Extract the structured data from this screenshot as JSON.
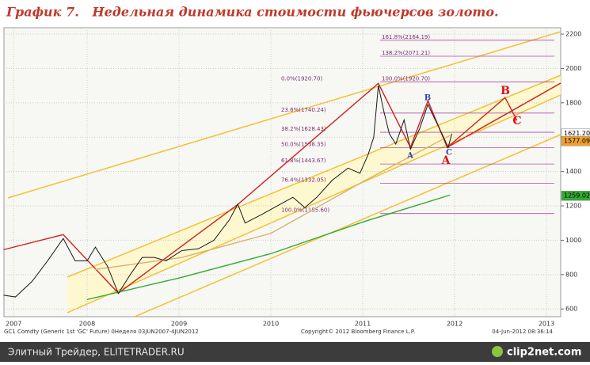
{
  "chart_data": {
    "type": "line",
    "title": "График 7.   Недельная динамика стоимости фьючерсов золото.",
    "x": [
      2007.09,
      2007.22,
      2007.4,
      2007.57,
      2007.74,
      2007.87,
      2008.0,
      2008.09,
      2008.22,
      2008.34,
      2008.47,
      2008.6,
      2008.73,
      2008.86,
      2009.03,
      2009.21,
      2009.38,
      2009.55,
      2009.64,
      2009.72,
      2009.9,
      2010.07,
      2010.24,
      2010.37,
      2010.5,
      2010.67,
      2010.84,
      2010.97,
      2011.06,
      2011.12,
      2011.17,
      2011.23,
      2011.29,
      2011.36,
      2011.45,
      2011.52,
      2011.62,
      2011.71,
      2011.79,
      2011.88,
      2011.93,
      2011.97
    ],
    "series": [
      {
        "color": "#1a1a1a",
        "values": [
          680,
          670,
          760,
          880,
          1010,
          880,
          880,
          960,
          850,
          690,
          800,
          900,
          900,
          880,
          940,
          950,
          1000,
          1120,
          1210,
          1100,
          1150,
          1200,
          1250,
          1190,
          1250,
          1350,
          1420,
          1390,
          1500,
          1600,
          1900,
          1750,
          1620,
          1560,
          1700,
          1530,
          1650,
          1790,
          1700,
          1600,
          1540,
          1620
        ]
      }
    ],
    "overlays": [
      {
        "color": "#cc2222",
        "x": [
          2007.09,
          2007.74,
          2008.34,
          2009.64,
          2011.17,
          2011.52,
          2011.71,
          2011.92,
          2012.55,
          2012.68
        ],
        "values": [
          945,
          1033,
          692,
          1208,
          1913,
          1540,
          1812,
          1540,
          1830,
          1697
        ]
      },
      {
        "color": "#33aa33",
        "x": [
          2008.0,
          2009.03,
          2010.0,
          2011.0,
          2011.95
        ],
        "values": [
          655,
          784,
          922,
          1106,
          1263
        ]
      },
      {
        "color": "#d9b26a",
        "x": [
          2008.09,
          2009.03,
          2010.0,
          2011.0,
          2011.95
        ],
        "values": [
          830,
          900,
          1040,
          1340,
          1610
        ]
      }
    ],
    "xlim": [
      2007.095,
      2013.155
    ],
    "xticks": [
      {
        "value": 2007.2,
        "label": "2007"
      },
      {
        "value": 2008,
        "label": "2008"
      },
      {
        "value": 2009,
        "label": "2009"
      },
      {
        "value": 2010,
        "label": "2010"
      },
      {
        "value": 2011,
        "label": "2011"
      },
      {
        "value": 2012,
        "label": "2012"
      },
      {
        "value": 2013,
        "label": "2013"
      }
    ],
    "ylim": [
      555,
      2237
    ],
    "yticks": [
      600,
      800,
      1000,
      1200,
      1400,
      1600,
      1800,
      2000,
      2200
    ],
    "grid": true,
    "fib_retracement": [
      {
        "value": 1920.7,
        "label": "0.0%(1920.70)"
      },
      {
        "value": 1740.24,
        "label": "23.6%(1740.24)"
      },
      {
        "value": 1628.43,
        "label": "38.2%(1628.43)"
      },
      {
        "value": 1538.35,
        "label": "50.0%(1538.35)"
      },
      {
        "value": 1443.67,
        "label": "61.8%(1443.67)"
      },
      {
        "value": 1332.05,
        "label": "76.4%(1332.05)"
      },
      {
        "value": 1155.6,
        "label": "100.0%(1155.60)"
      }
    ],
    "fib_extension": [
      {
        "value": 2164.19,
        "label": "161.8%(2164.19)"
      },
      {
        "value": 2071.21,
        "label": "138.2%(2071.21)"
      },
      {
        "value": 1920.7,
        "label": "100.0%(1920.70)"
      }
    ],
    "price_labels": [
      {
        "value": 1621.2,
        "label": "1621.20",
        "color": "#ffffff"
      },
      {
        "value": 1577.09,
        "label": "1577.09",
        "color": "#f0a030"
      },
      {
        "value": 1259.02,
        "label": "1259.02",
        "color": "#33aa33"
      }
    ],
    "annotations": [
      {
        "text": "A",
        "color": "#3344aa"
      },
      {
        "text": "B",
        "color": "#3344aa"
      },
      {
        "text": "C",
        "color": "#3344aa"
      },
      {
        "text": "A",
        "color": "#dd1111"
      },
      {
        "text": "B",
        "color": "#dd1111"
      },
      {
        "text": "C",
        "color": "#dd1111"
      }
    ],
    "footer": [
      "GC1 Comdty (Generic 1st 'GC' Future) 0Неделя 03JUN2007-4JUN2012",
      "Copyright© 2012 Bloomberg Finance L.P.",
      "04-Jun-2012 08:36:14"
    ],
    "bar_left": "Элитный Трейдер, ELITETRADER.RU",
    "bar_right": "clip2net.com"
  }
}
